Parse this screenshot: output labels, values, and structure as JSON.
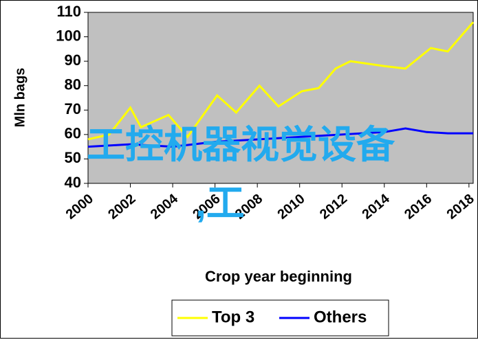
{
  "chart_data": {
    "type": "line",
    "ylabel": "Mln bags",
    "xlabel": "Crop year beginning",
    "annotations": [
      "工控机器视觉设备",
      ",工"
    ],
    "xlim": [
      2000,
      2018.2
    ],
    "xticks": [
      2000,
      2002,
      2004,
      2006,
      2008,
      2010,
      2012,
      2014,
      2016,
      2018
    ],
    "ylim": [
      40,
      110
    ],
    "yticks": [
      40,
      50,
      60,
      70,
      80,
      90,
      100,
      110
    ],
    "series": [
      {
        "name": "Top 3",
        "color": "#ffff00",
        "x": [
          2000,
          2001,
          2002,
          2002.5,
          2003.8,
          2004.7,
          2006.1,
          2007,
          2008.1,
          2009,
          2010.1,
          2010.9,
          2011.7,
          2012.4,
          2014,
          2015,
          2016.2,
          2017,
          2018.2
        ],
        "values": [
          58,
          60,
          71,
          63,
          68,
          59,
          76,
          69,
          80,
          71.5,
          77.7,
          79,
          87,
          90,
          88,
          87,
          95.4,
          94,
          106
        ]
      },
      {
        "name": "Others",
        "color": "#0000ff",
        "x": [
          2000,
          2002,
          2004,
          2006,
          2008,
          2010,
          2012,
          2014,
          2015,
          2016,
          2017,
          2018.2
        ],
        "values": [
          55,
          56,
          55,
          57,
          58,
          59,
          60,
          61,
          62.5,
          61,
          60.5,
          60.5
        ]
      }
    ]
  }
}
